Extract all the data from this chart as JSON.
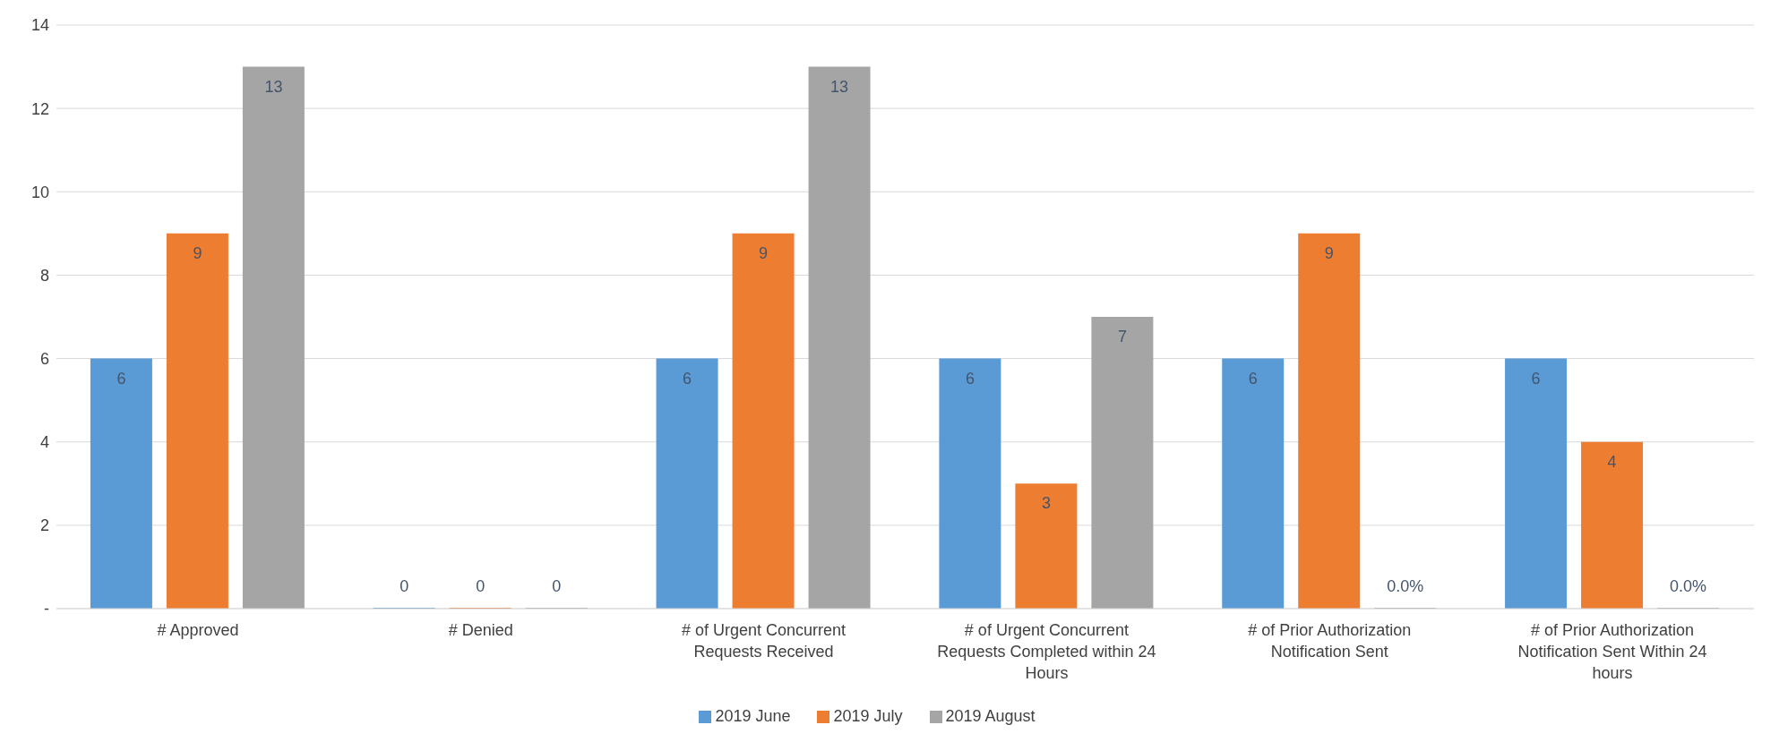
{
  "chart_data": {
    "type": "bar",
    "categories": [
      "# Approved",
      "# Denied",
      "# of Urgent Concurrent Requests Received",
      "# of Urgent Concurrent Requests Completed within 24 Hours",
      "# of Prior Authorization Notification Sent",
      "# of Prior Authorization Notification Sent Within 24 hours"
    ],
    "series": [
      {
        "name": "2019 June",
        "color": "#5b9bd5",
        "values": [
          6,
          0,
          6,
          6,
          6,
          6
        ],
        "value_labels": [
          "6",
          "0",
          "6",
          "6",
          "6",
          "6"
        ]
      },
      {
        "name": "2019 July",
        "color": "#ed7d31",
        "values": [
          9,
          0,
          9,
          3,
          9,
          4
        ],
        "value_labels": [
          "9",
          "0",
          "9",
          "3",
          "9",
          "4"
        ]
      },
      {
        "name": "2019 August",
        "color": "#a5a5a5",
        "values": [
          13,
          0,
          13,
          7,
          0,
          0
        ],
        "value_labels": [
          "13",
          "0",
          "13",
          "7",
          "0.0%",
          "0.0%"
        ]
      }
    ],
    "ylim": [
      0,
      14
    ],
    "yticks": [
      {
        "value": 0,
        "label": "-"
      },
      2,
      4,
      6,
      8,
      10,
      12,
      14
    ],
    "grid": "y",
    "legend": "bottom"
  }
}
